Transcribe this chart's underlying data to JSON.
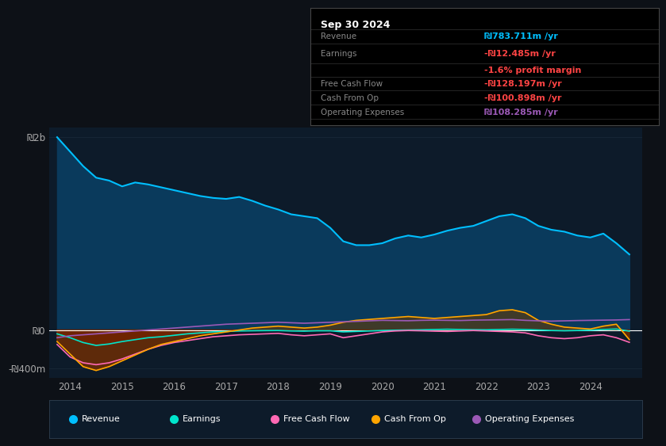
{
  "background_color": "#0d1117",
  "plot_bg_color": "#0d1b2a",
  "title": "Sep 30 2024",
  "revenue_color": "#00bfff",
  "revenue_fill_color": "#0a3a5c",
  "earnings_color": "#00e5cc",
  "fcf_color": "#ff69b4",
  "cashop_color": "#ffa500",
  "cashop_fill_color": "#7a3000",
  "earnings_fill_color": "#5a0000",
  "opex_color": "#9b59b6",
  "zero_line_color": "#ffffff",
  "grid_color": "#1a2a3a",
  "info_box_bg": "#000000",
  "legend_bg": "#0d1b2a",
  "revenue_value": "₪783.711m /yr",
  "earnings_value": "-₪12.485m /yr",
  "margin_value": "-1.6% profit margin",
  "fcf_value": "-₪128.197m /yr",
  "cashop_value": "-₪100.898m /yr",
  "opex_value": "₪108.285m /yr",
  "xlim": [
    2013.6,
    2025.0
  ],
  "ylim": [
    -500,
    2100
  ],
  "ytick_positions": [
    -400,
    0,
    2000
  ],
  "ytick_labels": [
    "-₪400m",
    "₪0",
    "₪2b"
  ],
  "xtick_years": [
    2014,
    2015,
    2016,
    2017,
    2018,
    2019,
    2020,
    2021,
    2022,
    2023,
    2024
  ],
  "info_rows": [
    {
      "label": "Revenue",
      "value": "₪783.711m /yr",
      "label_color": "#888888",
      "value_color": "#00bfff"
    },
    {
      "label": "Earnings",
      "value": "-₪12.485m /yr",
      "label_color": "#888888",
      "value_color": "#ff4444"
    },
    {
      "label": "",
      "value": "-1.6% profit margin",
      "label_color": "#888888",
      "value_color": "#ff4444"
    },
    {
      "label": "Free Cash Flow",
      "value": "-₪128.197m /yr",
      "label_color": "#888888",
      "value_color": "#ff4444"
    },
    {
      "label": "Cash From Op",
      "value": "-₪100.898m /yr",
      "label_color": "#888888",
      "value_color": "#ff4444"
    },
    {
      "label": "Operating Expenses",
      "value": "₪108.285m /yr",
      "label_color": "#888888",
      "value_color": "#9b59b6"
    }
  ],
  "legend_items": [
    {
      "label": "Revenue",
      "color": "#00bfff"
    },
    {
      "label": "Earnings",
      "color": "#00e5cc"
    },
    {
      "label": "Free Cash Flow",
      "color": "#ff69b4"
    },
    {
      "label": "Cash From Op",
      "color": "#ffa500"
    },
    {
      "label": "Operating Expenses",
      "color": "#9b59b6"
    }
  ]
}
